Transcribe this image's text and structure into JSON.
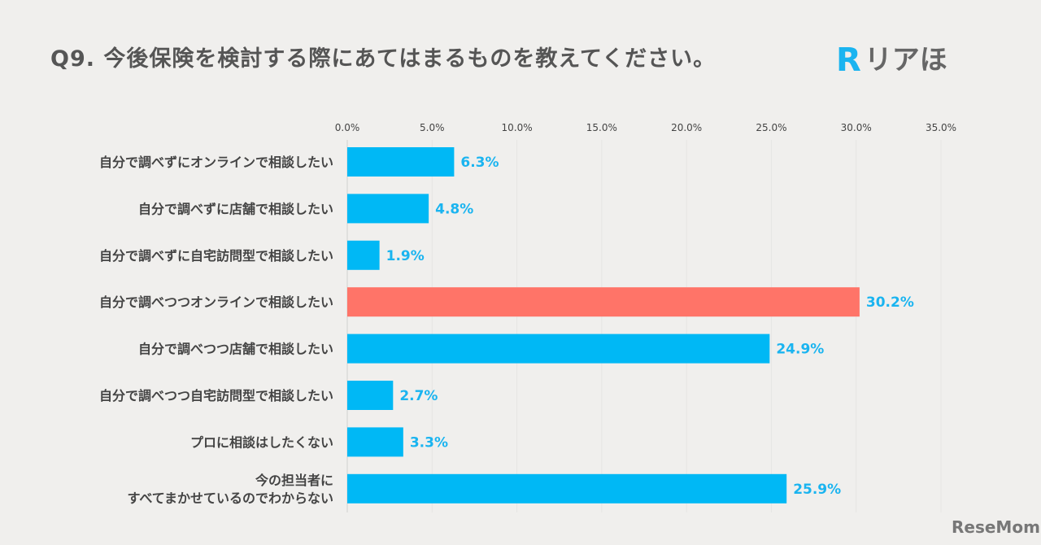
{
  "title": "Q9. 今後保険を検討する際にあてはまるものを教えてください。",
  "logo": {
    "mark": "R",
    "text": "リアほ"
  },
  "watermark": "ReseMom",
  "chart_data": {
    "type": "bar",
    "orientation": "horizontal",
    "title": "Q9. 今後保険を検討する際にあてはまるものを教えてください。",
    "categories": [
      [
        "自分で調べずにオンラインで相談したい"
      ],
      [
        "自分で調べずに店舗で相談したい"
      ],
      [
        "自分で調べずに自宅訪問型で相談したい"
      ],
      [
        "自分で調べつつオンラインで相談したい"
      ],
      [
        "自分で調べつつ店舗で相談したい"
      ],
      [
        "自分で調べつつ自宅訪問型で相談したい"
      ],
      [
        "プロに相談はしたくない"
      ],
      [
        "今の担当者に",
        "すべてまかせているのでわからない"
      ]
    ],
    "values": [
      6.3,
      4.8,
      1.9,
      30.2,
      24.9,
      2.7,
      3.3,
      25.9
    ],
    "value_labels": [
      "6.3%",
      "4.8%",
      "1.9%",
      "30.2%",
      "24.9%",
      "2.7%",
      "3.3%",
      "25.9%"
    ],
    "xlim": [
      0,
      35
    ],
    "xticks": [
      "0.0%",
      "5.0%",
      "10.0%",
      "15.0%",
      "20.0%",
      "25.0%",
      "30.0%",
      "35.0%"
    ],
    "xlabel": "",
    "ylabel": "",
    "grid": true,
    "colors": {
      "default": "#00b8f5",
      "highlight": "#ff7468",
      "label": "#1ab4f0"
    },
    "highlight_index": 3
  }
}
